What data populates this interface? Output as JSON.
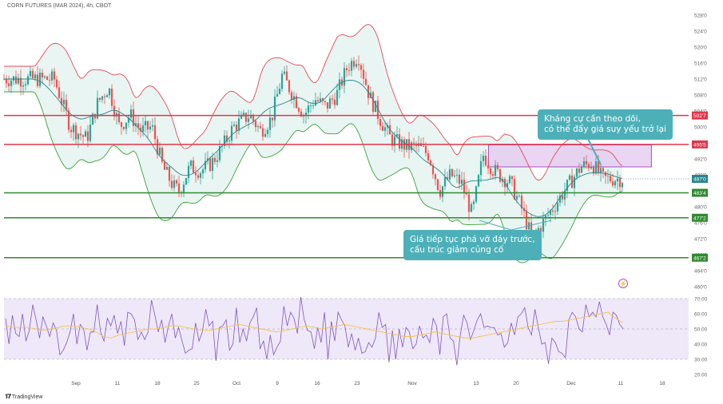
{
  "header": {
    "title": "CORN FUTURES (MAR 2024), 4h, CBOT"
  },
  "footer": {
    "brand": "TradingView"
  },
  "annotations": {
    "resistance": [
      "Kháng cự cần theo dõi,",
      "có thể đẩy giá suy yếu trở lại"
    ],
    "breakdown": [
      "Giá tiếp tục phá vỡ đáy trước,",
      "cấu trúc giảm củng cố"
    ]
  },
  "colors": {
    "resistance_line": "#e0364a",
    "support_line": "#2e8b2e",
    "upper_band": "#e24a5c",
    "lower_band": "#3aa23a",
    "basis": "#26868f",
    "band_fill": "#e9f5f2",
    "candle_up": "#26a69a",
    "candle_down": "#ef5350",
    "zone_fill": "#e3c7ee",
    "zone_border": "#a94fc4",
    "rsi_line": "#7e57c2",
    "rsi_ma": "#f5c24a",
    "rsi_bg": "#efe8f8",
    "callout": "#4db0b9"
  },
  "chart_data": [
    {
      "type": "candlestick",
      "title": "CORN FUTURES (MAR 2024), 4h, CBOT",
      "x_tick_labels": [
        "Sep",
        "11",
        "18",
        "25",
        "Oct",
        "9",
        "16",
        "23",
        "Nov",
        "13",
        "20",
        "Dec",
        "11",
        "18"
      ],
      "y_tick_labels": [
        "460'0",
        "464'0",
        "468'0",
        "472'0",
        "476'0",
        "480'0",
        "484'0",
        "488'0",
        "492'0",
        "496'0",
        "500'0",
        "504'0",
        "508'0",
        "512'0",
        "516'0",
        "520'0",
        "524'0",
        "528'0"
      ],
      "y_range": [
        460,
        528
      ],
      "horizontal_lines": [
        {
          "label": "502'7",
          "value": 502.875,
          "kind": "resistance"
        },
        {
          "label": "495'5",
          "value": 495.625,
          "kind": "resistance"
        },
        {
          "label": "483'4",
          "value": 483.5,
          "kind": "support"
        },
        {
          "label": "477'2",
          "value": 477.25,
          "kind": "support"
        },
        {
          "label": "467'2",
          "value": 467.25,
          "kind": "support"
        }
      ],
      "last_price_label": "487'0",
      "last_price": 487.0,
      "resistance_zone": {
        "low": 490.0,
        "high": 495.5,
        "from": "Nov 16",
        "to": "Dec 16"
      },
      "indicators": [
        "Bollinger Bands"
      ],
      "close_path": [
        [
          "Aug 28",
          512
        ],
        [
          "Aug 31",
          500
        ],
        [
          "Sep 3",
          497
        ],
        [
          "Sep 5",
          506
        ],
        [
          "Sep 7",
          510
        ],
        [
          "Sep 9",
          500
        ],
        [
          "Sep 11",
          503
        ],
        [
          "Sep 13",
          499
        ],
        [
          "Sep 15",
          500
        ],
        [
          "Sep 17",
          490
        ],
        [
          "Sep 19",
          485
        ],
        [
          "Sep 20",
          484
        ],
        [
          "Sep 22",
          490
        ],
        [
          "Sep 24",
          489
        ],
        [
          "Sep 26",
          491
        ],
        [
          "Sep 28",
          495
        ],
        [
          "Sep 30",
          500
        ],
        [
          "Oct 3",
          503
        ],
        [
          "Oct 5",
          499
        ],
        [
          "Oct 7",
          502
        ],
        [
          "Oct 9",
          513
        ],
        [
          "Oct 11",
          508
        ],
        [
          "Oct 13",
          503
        ],
        [
          "Oct 15",
          507
        ],
        [
          "Oct 17",
          505
        ],
        [
          "Oct 19",
          508
        ],
        [
          "Oct 21",
          515
        ],
        [
          "Oct 23",
          518
        ],
        [
          "Oct 25",
          508
        ],
        [
          "Oct 27",
          502
        ],
        [
          "Oct 29",
          497
        ],
        [
          "Nov 1",
          495
        ],
        [
          "Nov 3",
          495
        ],
        [
          "Nov 5",
          493
        ],
        [
          "Nov 7",
          484
        ],
        [
          "Nov 9",
          488
        ],
        [
          "Nov 11",
          486
        ],
        [
          "Nov 13",
          478
        ],
        [
          "Nov 15",
          493
        ],
        [
          "Nov 17",
          489
        ],
        [
          "Nov 20",
          486
        ],
        [
          "Nov 22",
          480
        ],
        [
          "Nov 24",
          472
        ],
        [
          "Nov 26",
          476
        ],
        [
          "Nov 29",
          482
        ],
        [
          "Dec 1",
          486
        ],
        [
          "Dec 3",
          490
        ],
        [
          "Dec 5",
          491
        ],
        [
          "Dec 7",
          487
        ]
      ]
    },
    {
      "type": "line",
      "title": "RSI",
      "y_tick_labels": [
        "20.00",
        "30.00",
        "40.00",
        "50.00",
        "60.00",
        "70.00"
      ],
      "y_range": [
        20,
        70
      ],
      "levels": [
        30,
        50,
        70
      ],
      "series": [
        {
          "name": "",
          "role": "rsi",
          "values": [
            57,
            40,
            59,
            47,
            45,
            60,
            42,
            49,
            66,
            56,
            44,
            58,
            52,
            45,
            54,
            49,
            33,
            36,
            41,
            48,
            60,
            40,
            53,
            50,
            36,
            48,
            48,
            66,
            48,
            42,
            57,
            52,
            59,
            47,
            55,
            39,
            61,
            60,
            56,
            43,
            48,
            43,
            48,
            69,
            59,
            48,
            56,
            41,
            52,
            60,
            44,
            51,
            42,
            34,
            36,
            37,
            54,
            42,
            48,
            63,
            52,
            55,
            29,
            51,
            52,
            56,
            36,
            40,
            64,
            41,
            50,
            42,
            54,
            58,
            64,
            37,
            42,
            30,
            46,
            33,
            38,
            42,
            65,
            52,
            61,
            57,
            47,
            71,
            56,
            49,
            48,
            37,
            51,
            41,
            61,
            30,
            55,
            42,
            61,
            56,
            52,
            38,
            47,
            36,
            44,
            34,
            35,
            41,
            38,
            44,
            61,
            51,
            53,
            28,
            49,
            30,
            50,
            38,
            51,
            48,
            37,
            40,
            52,
            44,
            46,
            41,
            57,
            52,
            33,
            58,
            60,
            44,
            42,
            26,
            46,
            59,
            54,
            43,
            49,
            56,
            60,
            51,
            52,
            51,
            51,
            46,
            47,
            38,
            41,
            54,
            46,
            58,
            60,
            64,
            51,
            46,
            63,
            51,
            40,
            41,
            27,
            44,
            41,
            35,
            34,
            31,
            56,
            61,
            58,
            50,
            48,
            66,
            58,
            61,
            58,
            68,
            58,
            53,
            46,
            61,
            59,
            53,
            50
          ]
        },
        {
          "name": "",
          "role": "rsi-ma",
          "values": [
            52,
            51,
            51,
            51,
            50,
            49,
            50,
            51,
            52,
            52,
            51,
            50,
            48,
            45,
            44,
            46,
            47,
            48,
            49,
            50,
            50,
            51,
            52,
            52,
            51,
            50,
            49,
            49,
            50,
            51,
            52,
            53,
            52,
            51,
            50,
            49,
            48,
            49,
            50,
            51,
            52,
            51,
            50,
            51,
            52,
            53,
            52,
            51,
            50,
            49,
            48,
            47,
            46,
            45,
            45,
            46,
            47,
            48,
            47,
            46,
            45,
            44,
            44,
            45,
            46,
            47,
            48,
            49,
            50,
            51,
            52,
            53,
            54,
            55,
            55,
            56,
            57,
            58,
            59,
            60,
            61,
            57,
            54
          ]
        }
      ]
    }
  ]
}
